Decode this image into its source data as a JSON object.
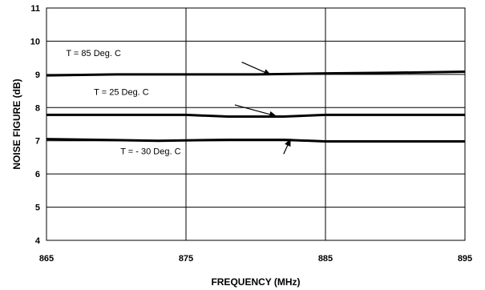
{
  "chart_data": {
    "type": "line",
    "title": "",
    "xlabel": "FREQUENCY (MHz)",
    "ylabel": "NOISE FIGURE (dB)",
    "xlim": [
      865,
      895
    ],
    "ylim": [
      4,
      11
    ],
    "xticks": [
      "865",
      "875",
      "885",
      "895"
    ],
    "yticks": [
      "4",
      "5",
      "6",
      "7",
      "8",
      "9",
      "10",
      "11"
    ],
    "grid": true,
    "legend": "none",
    "series": [
      {
        "name": "T = 85 Deg. C",
        "x": [
          865,
          870,
          875,
          880,
          885,
          890,
          895
        ],
        "y": [
          8.97,
          9.0,
          9.0,
          9.0,
          9.03,
          9.05,
          9.08
        ]
      },
      {
        "name": "T = 25 Deg. C",
        "x": [
          865,
          870,
          875,
          878,
          882,
          885,
          890,
          895
        ],
        "y": [
          7.78,
          7.78,
          7.78,
          7.73,
          7.73,
          7.78,
          7.78,
          7.78
        ]
      },
      {
        "name": "T = - 30 Deg. C",
        "x": [
          865,
          870,
          873,
          878,
          882,
          885,
          890,
          895
        ],
        "y": [
          7.05,
          7.02,
          7.0,
          7.03,
          7.03,
          6.98,
          6.98,
          6.98
        ]
      }
    ],
    "annotations": [
      {
        "text": "T = 85 Deg. C",
        "series": 0
      },
      {
        "text": "T = 25 Deg. C",
        "series": 1
      },
      {
        "text": "T = - 30 Deg. C",
        "series": 2
      }
    ]
  }
}
